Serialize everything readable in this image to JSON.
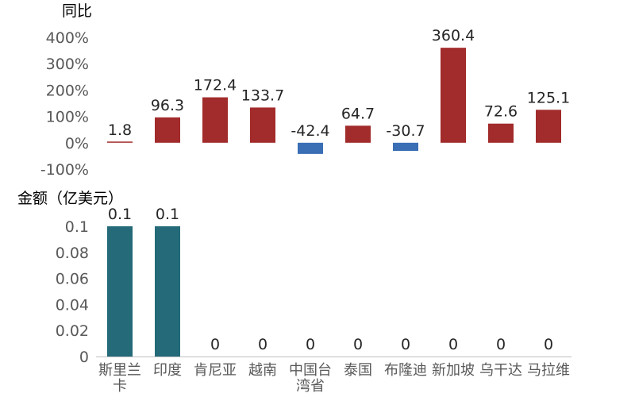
{
  "colors": {
    "positive": "#A22B2B",
    "negative": "#3A6EB5",
    "amount": "#246A78",
    "axis_text": "#595959",
    "value_text": "#262626",
    "axis_line": "#BFBFBF"
  },
  "chart_data": [
    {
      "type": "bar",
      "ylabel": "同比",
      "categories": [
        "斯里兰卡",
        "印度",
        "肯尼亚",
        "越南",
        "中国台湾省",
        "泰国",
        "布隆迪",
        "新加坡",
        "乌干达",
        "马拉维"
      ],
      "category_lines": [
        [
          "斯里兰",
          "卡"
        ],
        [
          "印度"
        ],
        [
          "肯尼亚"
        ],
        [
          "越南"
        ],
        [
          "中国台",
          "湾省"
        ],
        [
          "泰国"
        ],
        [
          "布隆迪"
        ],
        [
          "新加坡"
        ],
        [
          "乌干达"
        ],
        [
          "马拉维"
        ]
      ],
      "values": [
        1.8,
        96.3,
        172.4,
        133.7,
        -42.4,
        64.7,
        -30.7,
        360.4,
        72.6,
        125.1
      ],
      "value_labels": [
        "1.8",
        "96.3",
        "172.4",
        "133.7",
        "-42.4",
        "64.7",
        "-30.7",
        "360.4",
        "72.6",
        "125.1"
      ],
      "ylim": [
        -100,
        400
      ],
      "yticks": [
        400,
        300,
        200,
        100,
        0,
        -100
      ],
      "ytick_labels": [
        "400%",
        "300%",
        "200%",
        "100%",
        "0%",
        "-100%"
      ],
      "grid": false
    },
    {
      "type": "bar",
      "ylabel": "金额（亿美元）",
      "categories": [
        "斯里兰卡",
        "印度",
        "肯尼亚",
        "越南",
        "中国台湾省",
        "泰国",
        "布隆迪",
        "新加坡",
        "乌干达",
        "马拉维"
      ],
      "values": [
        0.1,
        0.1,
        0,
        0,
        0,
        0,
        0,
        0,
        0,
        0
      ],
      "value_labels": [
        "0.1",
        "0.1",
        "0",
        "0",
        "0",
        "0",
        "0",
        "0",
        "0",
        "0"
      ],
      "ylim": [
        0,
        0.1
      ],
      "yticks": [
        0.1,
        0.08,
        0.06,
        0.04,
        0.02,
        0
      ],
      "ytick_labels": [
        "0.1",
        "0.08",
        "0.06",
        "0.04",
        "0.02",
        "0"
      ],
      "grid": false
    }
  ]
}
